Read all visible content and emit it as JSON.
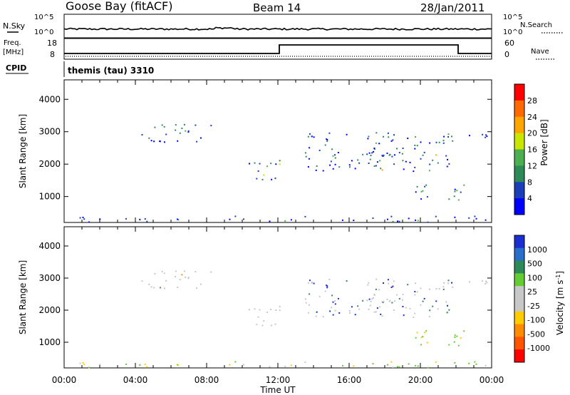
{
  "header": {
    "station": "Goose Bay (fitACF)",
    "beam": "Beam 14",
    "date": "28/Jan/2011"
  },
  "noise_panel": {
    "left_label": "N.Sky",
    "left_ticks": [
      "10^5",
      "10^0"
    ],
    "right_label": "N.Search",
    "right_ticks": [
      "10^5",
      "10^0"
    ]
  },
  "freq_panel": {
    "left_label_1": "Freq.",
    "left_label_2": "[MHz]",
    "left_ticks": [
      "18",
      "8"
    ],
    "right_label": "Nave",
    "right_ticks": [
      "60",
      "0"
    ],
    "cpid_label": "CPID",
    "mode_label": "themis (tau) 3310"
  },
  "colors": {
    "power_scale": [
      "#0000ff",
      "#1a3fb8",
      "#2e8b57",
      "#4caf50",
      "#c8e600",
      "#ffa500",
      "#ff6a00",
      "#ff0000"
    ],
    "velocity_scale": [
      "#1b2fd0",
      "#2a6ecc",
      "#2e8b57",
      "#66cc33",
      "#c8c8c8",
      "#c8c8c8",
      "#ffcc00",
      "#ff8c00",
      "#ff5500",
      "#ff0000"
    ]
  },
  "chart_data": [
    {
      "type": "heatmap",
      "name": "power",
      "ylabel": "Slant Range [km]",
      "y_ticks": [
        1000,
        2000,
        3000,
        4000
      ],
      "ylim": [
        200,
        4600
      ],
      "colorbar_label": "Power [dB]",
      "colorbar_ticks": [
        4,
        8,
        12,
        16,
        20,
        24,
        28
      ],
      "colorbar_range": [
        0,
        32
      ]
    },
    {
      "type": "heatmap",
      "name": "velocity",
      "ylabel": "Slant Range [km]",
      "y_ticks": [
        1000,
        2000,
        3000,
        4000
      ],
      "ylim": [
        200,
        4600
      ],
      "colorbar_label": "Velocity [m s^-1]",
      "colorbar_ticks": [
        "1000",
        "500",
        "100",
        "25",
        "-25",
        "-100",
        "-500",
        "-1000"
      ],
      "xlabel": "Time UT",
      "x_ticks": [
        "00:00",
        "04:00",
        "08:00",
        "12:00",
        "16:00",
        "20:00",
        "00:00"
      ],
      "xlim_hours": [
        0,
        24
      ]
    }
  ]
}
